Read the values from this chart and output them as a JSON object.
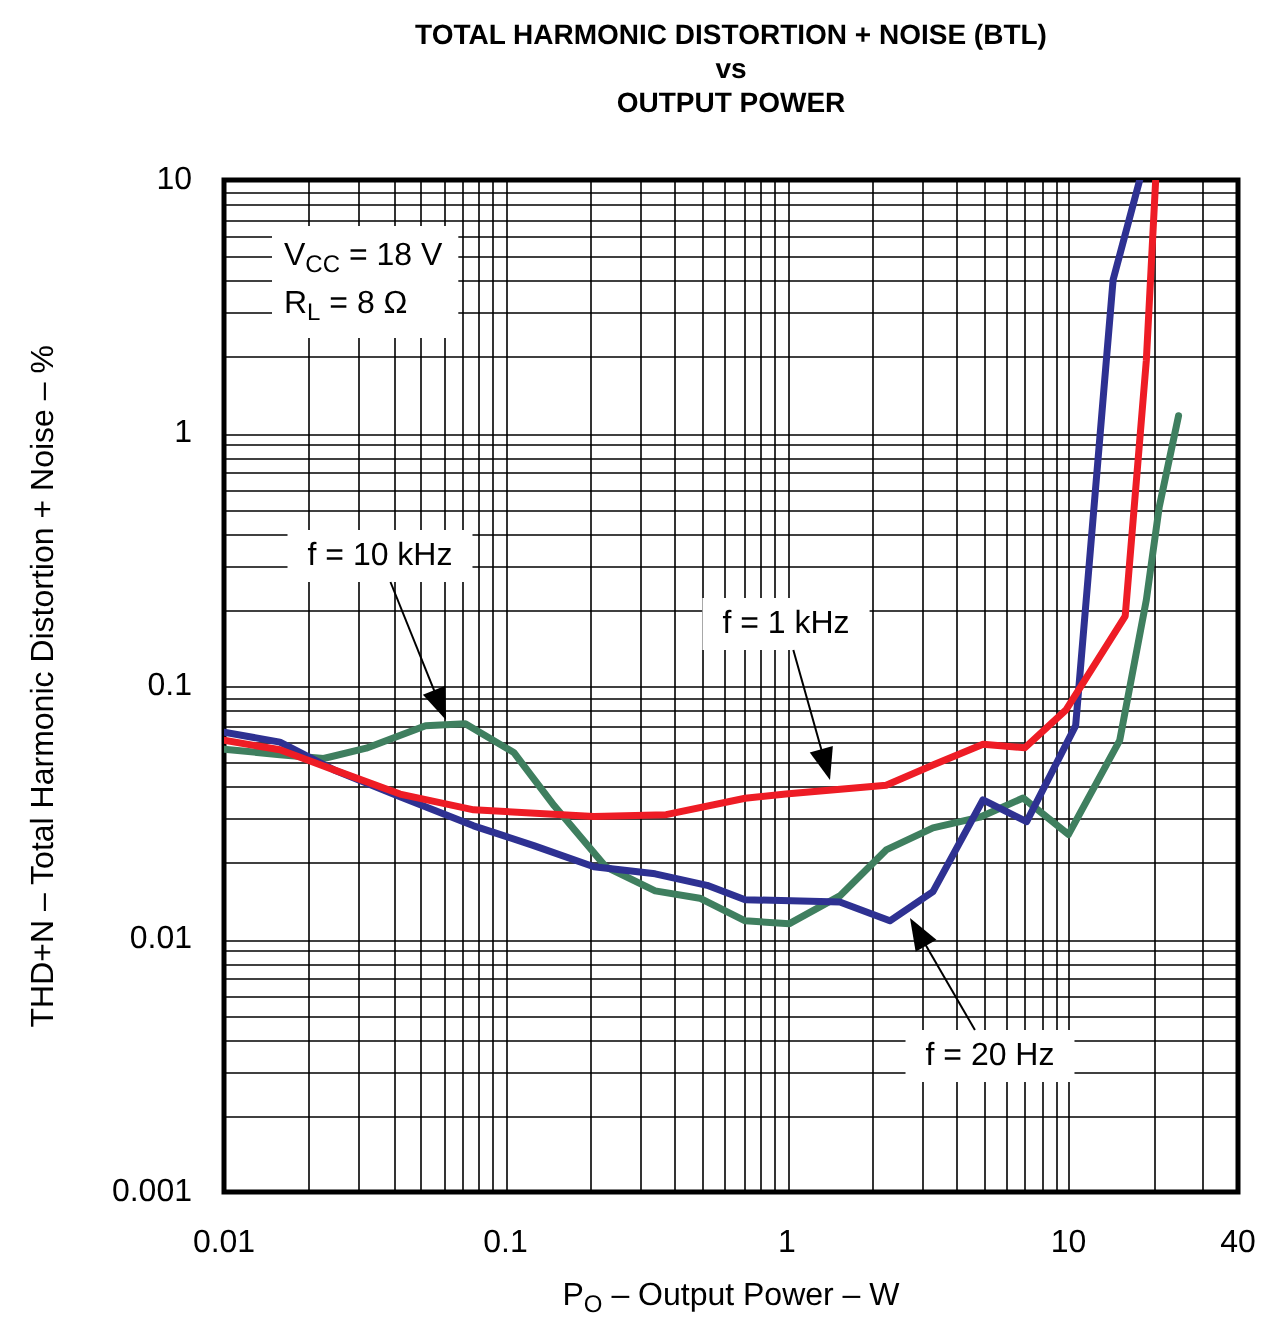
{
  "chart_data": {
    "type": "line",
    "title": "TOTAL HARMONIC DISTORTION + NOISE (BTL)\nvs\nOUTPUT POWER",
    "xlabel": "P$_{O}$ – Output Power – W",
    "ylabel": "THD+N – Total Harmonic Distortion + Noise – %",
    "log": "xy",
    "grid": true,
    "legend": false,
    "marker": "none",
    "line_style": "solid",
    "xlim": [
      0.01,
      40
    ],
    "xticks": [
      0.01,
      0.1,
      1,
      10,
      40
    ],
    "ylim": [
      0.001,
      10
    ],
    "yticks": [
      0.001,
      0.01,
      0.1,
      1,
      10
    ],
    "series": [
      {
        "color": "#ee1c25",
        "x": [
          0.01,
          0.0158,
          0.0246,
          0.0422,
          0.0771,
          0.206,
          0.372,
          0.71,
          0.99,
          2.25,
          3.3,
          4.97,
          7.0,
          9.8,
          15.9,
          18.9,
          20.4
        ],
        "values": [
          0.061,
          0.056,
          0.0466,
          0.0374,
          0.0324,
          0.0305,
          0.031,
          0.036,
          0.0374,
          0.0405,
          0.0487,
          0.0589,
          0.057,
          0.0805,
          0.189,
          1.94,
          10
        ]
      },
      {
        "color": "#2e3192",
        "x": [
          0.01,
          0.0158,
          0.0246,
          0.042,
          0.077,
          0.126,
          0.206,
          0.34,
          0.52,
          0.71,
          1.54,
          2.32,
          3.3,
          4.97,
          7.1,
          10.6,
          14.4,
          17.9
        ],
        "values": [
          0.0657,
          0.06,
          0.0466,
          0.0366,
          0.028,
          0.0234,
          0.0193,
          0.0181,
          0.0163,
          0.0143,
          0.014,
          0.0118,
          0.0154,
          0.0355,
          0.0291,
          0.0697,
          4.03,
          10
        ]
      },
      {
        "color": "#3f7f5f",
        "x": [
          0.01,
          0.0158,
          0.0226,
          0.032,
          0.052,
          0.072,
          0.107,
          0.149,
          0.227,
          0.34,
          0.49,
          0.71,
          1.02,
          1.54,
          2.25,
          3.3,
          4.84,
          6.9,
          10,
          15.2,
          18.9,
          21,
          24.6
        ],
        "values": [
          0.0563,
          0.0535,
          0.0517,
          0.0568,
          0.0697,
          0.071,
          0.0546,
          0.0336,
          0.0193,
          0.0155,
          0.0145,
          0.0118,
          0.0115,
          0.0148,
          0.0225,
          0.0275,
          0.0303,
          0.0361,
          0.0259,
          0.061,
          0.219,
          0.51,
          1.17
        ]
      }
    ],
    "annotations": [
      "V$_{CC}$ = 18 V\nR$_{L}$ = 8 Ω",
      "f = 10 kHz",
      "f = 1 kHz",
      "f = 20 Hz"
    ]
  }
}
